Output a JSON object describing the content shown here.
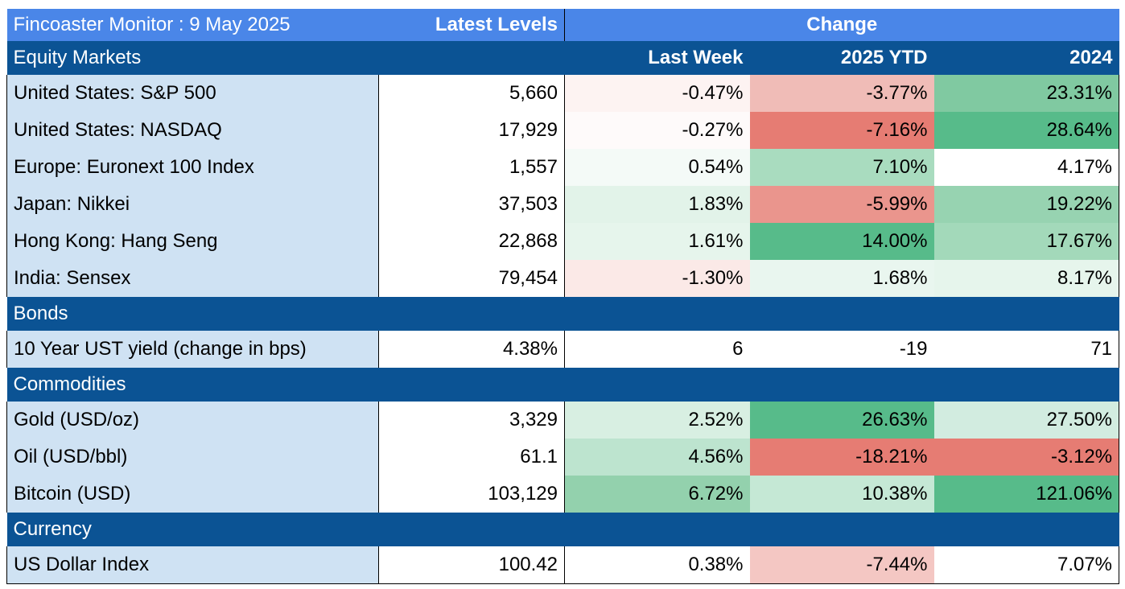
{
  "header": {
    "title": "Fincoaster Monitor : 9 May 2025",
    "latest_levels": "Latest Levels",
    "change": "Change"
  },
  "columns": {
    "last_week": "Last Week",
    "ytd": "2025 YTD",
    "prior_year": "2024"
  },
  "sections": [
    {
      "title": "Equity Markets",
      "rows": [
        {
          "label": "United States: S&P 500",
          "level": "5,660",
          "last_week": "-0.47%",
          "ytd": "-3.77%",
          "prior_year": "23.31%",
          "colors": [
            "#fdf3f2",
            "#f0bcb7",
            "#80c9a1"
          ]
        },
        {
          "label": "United States: NASDAQ",
          "level": "17,929",
          "last_week": "-0.27%",
          "ytd": "-7.16%",
          "prior_year": "28.64%",
          "colors": [
            "#fefafa",
            "#e67c73",
            "#57bb8a"
          ]
        },
        {
          "label": "Europe: Euronext 100 Index",
          "level": "1,557",
          "last_week": "0.54%",
          "ytd": "7.10%",
          "prior_year": "4.17%",
          "colors": [
            "#f4faf7",
            "#a9dcbf",
            "#ffffff"
          ]
        },
        {
          "label": "Japan: Nikkei",
          "level": "37,503",
          "last_week": "1.83%",
          "ytd": "-5.99%",
          "prior_year": "19.22%",
          "colors": [
            "#e2f3e9",
            "#ea958d",
            "#97d3b1"
          ]
        },
        {
          "label": "Hong Kong: Hang Seng",
          "level": "22,868",
          "last_week": "1.61%",
          "ytd": "14.00%",
          "prior_year": "17.67%",
          "colors": [
            "#e6f5ec",
            "#57bb8a",
            "#a3d9ba"
          ]
        },
        {
          "label": "India: Sensex",
          "level": "79,454",
          "last_week": "-1.30%",
          "ytd": "1.68%",
          "prior_year": "8.17%",
          "colors": [
            "#fbe9e7",
            "#e9f6ef",
            "#e6f5ec"
          ]
        }
      ]
    },
    {
      "title": "Bonds",
      "rows": [
        {
          "label": "10 Year UST yield (change in bps)",
          "level": "4.38%",
          "last_week": "6",
          "ytd": "-19",
          "prior_year": "71",
          "colors": [
            "#ffffff",
            "#ffffff",
            "#ffffff"
          ]
        }
      ]
    },
    {
      "title": "Commodities",
      "rows": [
        {
          "label": "Gold (USD/oz)",
          "level": "3,329",
          "last_week": "2.52%",
          "ytd": "26.63%",
          "prior_year": "27.50%",
          "colors": [
            "#d8efe2",
            "#57bb8a",
            "#d2ece0"
          ]
        },
        {
          "label": "Oil (USD/bbl)",
          "level": "61.1",
          "last_week": "4.56%",
          "ytd": "-18.21%",
          "prior_year": "-3.12%",
          "colors": [
            "#bde4cf",
            "#e67c73",
            "#e67c73"
          ]
        },
        {
          "label": "Bitcoin (USD)",
          "level": "103,129",
          "last_week": "6.72%",
          "ytd": "10.38%",
          "prior_year": "121.06%",
          "colors": [
            "#93d1ad",
            "#c5e8d5",
            "#57bb8a"
          ]
        }
      ]
    },
    {
      "title": "Currency",
      "rows": [
        {
          "label": "US Dollar Index",
          "level": "100.42",
          "last_week": "0.38%",
          "ytd": "-7.44%",
          "prior_year": "7.07%",
          "colors": [
            "#ffffff",
            "#f4c7c3",
            "#ffffff"
          ]
        }
      ]
    }
  ]
}
